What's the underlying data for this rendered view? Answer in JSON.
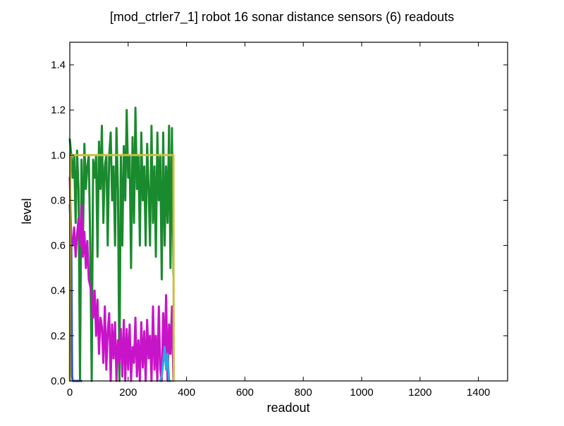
{
  "chart_data": {
    "type": "line",
    "title": "[mod_ctrler7_1] robot 16 sonar distance sensors (6) readouts",
    "xlabel": "readout",
    "ylabel": "level",
    "xlim": [
      0,
      1500
    ],
    "ylim": [
      0,
      1.5
    ],
    "x_ticks": [
      0,
      200,
      400,
      600,
      800,
      1000,
      1200,
      1400
    ],
    "y_ticks": [
      0.0,
      0.2,
      0.4,
      0.6,
      0.8,
      1.0,
      1.2,
      1.4
    ],
    "x_tick_labels": [
      "0",
      "200",
      "400",
      "600",
      "800",
      "1000",
      "1200",
      "1400"
    ],
    "y_tick_labels": [
      "0.0",
      "0.2",
      "0.4",
      "0.6",
      "0.8",
      "1.0",
      "1.2",
      "1.4"
    ],
    "grid": false,
    "legend": "none",
    "series": [
      {
        "color": "#1a8a2e",
        "x": [
          0,
          5,
          10,
          15,
          20,
          25,
          30,
          35,
          40,
          45,
          50,
          55,
          60,
          65,
          70,
          75,
          80,
          85,
          90,
          95,
          100,
          105,
          110,
          115,
          120,
          125,
          130,
          135,
          140,
          145,
          150,
          155,
          160,
          165,
          170,
          175,
          180,
          185,
          190,
          195,
          200,
          205,
          210,
          215,
          220,
          225,
          230,
          235,
          240,
          245,
          250,
          255,
          260,
          265,
          270,
          275,
          280,
          285,
          290,
          295,
          300,
          305,
          310,
          315,
          320,
          325,
          330,
          335,
          340,
          345,
          350,
          355
        ],
        "values": [
          1.07,
          1.0,
          0.9,
          1.0,
          0.7,
          1.02,
          0.85,
          0.0,
          0.98,
          0.6,
          1.05,
          0.85,
          0.95,
          1.0,
          0.6,
          0.0,
          0.98,
          0.9,
          1.0,
          0.55,
          1.06,
          0.85,
          1.13,
          0.7,
          0.95,
          1.0,
          0.6,
          1.0,
          1.1,
          0.8,
          0.95,
          0.6,
          1.12,
          0.85,
          0.0,
          1.0,
          0.6,
          1.04,
          0.8,
          1.2,
          0.9,
          1.0,
          0.5,
          1.08,
          0.7,
          1.21,
          0.85,
          1.0,
          0.6,
          1.1,
          0.8,
          0.95,
          0.6,
          1.05,
          0.85,
          0.6,
          1.13,
          0.7,
          0.95,
          0.55,
          1.1,
          0.8,
          1.0,
          0.45,
          1.1,
          0.6,
          0.95,
          0.7,
          1.13,
          0.5,
          1.12,
          0.47
        ]
      },
      {
        "color": "#c814c8",
        "x": [
          0,
          5,
          10,
          15,
          20,
          25,
          30,
          35,
          40,
          45,
          50,
          55,
          60,
          65,
          70,
          75,
          80,
          85,
          90,
          95,
          100,
          105,
          110,
          115,
          120,
          125,
          130,
          135,
          140,
          145,
          150,
          155,
          160,
          165,
          170,
          175,
          180,
          185,
          190,
          195,
          200,
          205,
          210,
          215,
          220,
          225,
          230,
          235,
          240,
          245,
          250,
          255,
          260,
          265,
          270,
          275,
          280,
          285,
          290,
          295,
          300,
          305,
          310,
          315,
          320,
          325,
          330,
          335,
          340,
          345,
          350,
          355
        ],
        "values": [
          0.9,
          0.62,
          0.6,
          0.68,
          0.55,
          0.65,
          0.72,
          0.6,
          0.78,
          0.55,
          0.66,
          0.5,
          0.62,
          0.45,
          0.42,
          0.38,
          0.28,
          0.4,
          0.2,
          0.36,
          0.12,
          0.28,
          0.24,
          0.08,
          0.33,
          0.05,
          0.22,
          0.3,
          0.0,
          0.25,
          0.1,
          0.26,
          0.0,
          0.18,
          0.08,
          0.23,
          0.02,
          0.27,
          0.0,
          0.23,
          0.05,
          0.25,
          0.0,
          0.15,
          0.08,
          0.28,
          0.02,
          0.18,
          0.0,
          0.26,
          0.06,
          0.22,
          0.0,
          0.27,
          0.1,
          0.2,
          0.0,
          0.33,
          0.05,
          0.2,
          0.0,
          0.33,
          0.05,
          0.0,
          0.3,
          0.1,
          0.38,
          0.0,
          0.25,
          0.12,
          0.33,
          0.0
        ]
      },
      {
        "color": "#2a52c8",
        "x": [
          0,
          5,
          8,
          10,
          15,
          20,
          25,
          30,
          35,
          40
        ],
        "values": [
          0.78,
          0.6,
          0.02,
          0.0,
          0.0,
          0.0,
          0.0,
          0.0,
          0.0,
          0.0
        ]
      },
      {
        "color": "#2aa8e0",
        "x": [
          310,
          315,
          320,
          325,
          330,
          335,
          340,
          345
        ],
        "values": [
          0.0,
          0.02,
          0.08,
          0.15,
          0.05,
          0.12,
          0.0,
          0.0
        ]
      },
      {
        "color": "#c8c040",
        "x": [
          0,
          2,
          355,
          356
        ],
        "values": [
          0.0,
          1.0,
          1.0,
          0.0
        ]
      }
    ]
  }
}
